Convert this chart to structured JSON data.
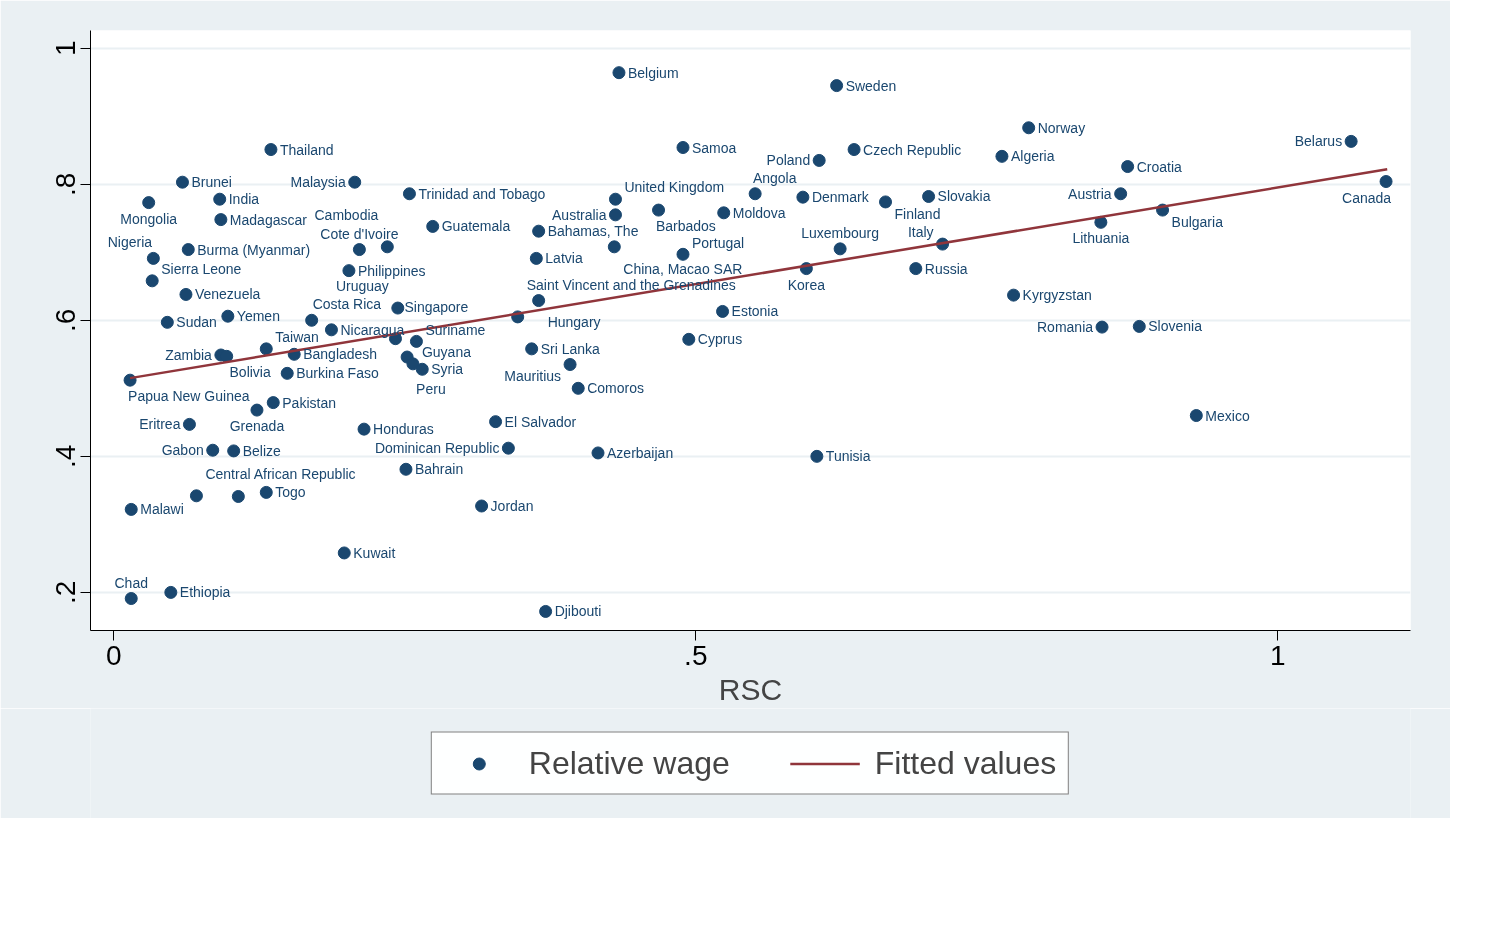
{
  "chart_data": {
    "type": "scatter",
    "xlabel": "RSC",
    "xlim": [
      -0.02,
      1.114
    ],
    "ylim": [
      0.144,
      1.026
    ],
    "xticks": [
      {
        "value": 0,
        "label": "0"
      },
      {
        "value": 0.5,
        "label": ".5"
      },
      {
        "value": 1,
        "label": "1"
      }
    ],
    "yticks": [
      {
        "value": 0.2,
        "label": ".2"
      },
      {
        "value": 0.4,
        "label": ".4"
      },
      {
        "value": 0.6,
        "label": ".6"
      },
      {
        "value": 0.8,
        "label": ".8"
      },
      {
        "value": 1,
        "label": "1"
      }
    ],
    "grid": "y",
    "legend": "bottom",
    "series": [
      {
        "name": "Relative wage",
        "marker": "circle",
        "color": "#1a476f",
        "x": [
          0.434,
          0.621,
          0.786,
          1.063,
          0.135,
          0.489,
          0.636,
          0.606,
          0.763,
          0.871,
          1.093,
          0.059,
          0.207,
          0.03,
          0.091,
          0.254,
          0.431,
          0.551,
          0.592,
          0.663,
          0.7,
          0.865,
          0.468,
          0.431,
          0.524,
          0.901,
          0.092,
          0.848,
          0.274,
          0.365,
          0.064,
          0.211,
          0.235,
          0.43,
          0.489,
          0.624,
          0.712,
          0.034,
          0.363,
          0.595,
          0.689,
          0.202,
          0.033,
          0.062,
          0.773,
          0.365,
          0.244,
          0.523,
          0.098,
          0.347,
          0.046,
          0.17,
          0.187,
          0.849,
          0.881,
          0.494,
          0.242,
          0.26,
          0.092,
          0.097,
          0.131,
          0.155,
          0.359,
          0.252,
          0.257,
          0.265,
          0.392,
          0.149,
          0.014,
          0.399,
          0.137,
          0.123,
          0.93,
          0.328,
          0.065,
          0.215,
          0.339,
          0.416,
          0.604,
          0.085,
          0.103,
          0.251,
          0.071,
          0.107,
          0.131,
          0.316,
          0.015,
          0.198,
          0.049,
          0.015,
          0.371
        ],
        "values": [
          0.964,
          0.945,
          0.883,
          0.863,
          0.851,
          0.854,
          0.851,
          0.835,
          0.841,
          0.826,
          0.804,
          0.803,
          0.803,
          0.773,
          0.778,
          0.786,
          0.778,
          0.786,
          0.781,
          0.774,
          0.782,
          0.786,
          0.762,
          0.755,
          0.758,
          0.762,
          0.748,
          0.744,
          0.738,
          0.731,
          0.704,
          0.704,
          0.708,
          0.708,
          0.697,
          0.705,
          0.712,
          0.691,
          0.691,
          0.676,
          0.676,
          0.673,
          0.658,
          0.638,
          0.637,
          0.629,
          0.618,
          0.613,
          0.606,
          0.605,
          0.597,
          0.6,
          0.586,
          0.59,
          0.591,
          0.572,
          0.573,
          0.569,
          0.549,
          0.547,
          0.558,
          0.55,
          0.558,
          0.546,
          0.536,
          0.528,
          0.535,
          0.522,
          0.512,
          0.5,
          0.479,
          0.468,
          0.46,
          0.451,
          0.447,
          0.44,
          0.412,
          0.405,
          0.4,
          0.409,
          0.408,
          0.381,
          0.342,
          0.341,
          0.347,
          0.327,
          0.322,
          0.258,
          0.2,
          0.191,
          0.172
        ]
      },
      {
        "name": "Fitted values",
        "type": "line",
        "color": "#90353b",
        "line_style": "solid",
        "x": [
          0.014,
          1.094
        ],
        "values": [
          0.515,
          0.822
        ]
      }
    ],
    "annotations": [
      {
        "text": "Belgium",
        "x": 0.434,
        "y": 0.964
      },
      {
        "text": "Sweden",
        "x": 0.621,
        "y": 0.945
      },
      {
        "text": "Norway",
        "x": 0.786,
        "y": 0.883
      },
      {
        "text": "Belarus",
        "x": 1.063,
        "y": 0.863
      },
      {
        "text": "Thailand",
        "x": 0.135,
        "y": 0.851
      },
      {
        "text": "Samoa",
        "x": 0.489,
        "y": 0.854
      },
      {
        "text": "Czech Republic",
        "x": 0.636,
        "y": 0.851
      },
      {
        "text": "Poland",
        "x": 0.606,
        "y": 0.835
      },
      {
        "text": "Algeria",
        "x": 0.763,
        "y": 0.841
      },
      {
        "text": "Croatia",
        "x": 0.871,
        "y": 0.826
      },
      {
        "text": "Canada",
        "x": 1.093,
        "y": 0.804
      },
      {
        "text": "Brunei",
        "x": 0.059,
        "y": 0.803
      },
      {
        "text": "Malaysia",
        "x": 0.207,
        "y": 0.803
      },
      {
        "text": "Mongolia",
        "x": 0.03,
        "y": 0.773
      },
      {
        "text": "India",
        "x": 0.091,
        "y": 0.778
      },
      {
        "text": "Trinidad and Tobago",
        "x": 0.254,
        "y": 0.786
      },
      {
        "text": "United Kingdom",
        "x": 0.431,
        "y": 0.778
      },
      {
        "text": "Angola",
        "x": 0.551,
        "y": 0.786
      },
      {
        "text": "Denmark",
        "x": 0.592,
        "y": 0.781
      },
      {
        "text": "Finland",
        "x": 0.663,
        "y": 0.774
      },
      {
        "text": "Slovakia",
        "x": 0.7,
        "y": 0.782
      },
      {
        "text": "Austria",
        "x": 0.865,
        "y": 0.786
      },
      {
        "text": "Barbados",
        "x": 0.468,
        "y": 0.762
      },
      {
        "text": "Australia",
        "x": 0.431,
        "y": 0.755
      },
      {
        "text": "Moldova",
        "x": 0.524,
        "y": 0.758
      },
      {
        "text": "Bulgaria",
        "x": 0.901,
        "y": 0.762
      },
      {
        "text": "Madagascar",
        "x": 0.092,
        "y": 0.748
      },
      {
        "text": "Lithuania",
        "x": 0.848,
        "y": 0.744
      },
      {
        "text": "Guatemala",
        "x": 0.274,
        "y": 0.738
      },
      {
        "text": "Bahamas, The",
        "x": 0.365,
        "y": 0.731
      },
      {
        "text": "Burma (Myanmar)",
        "x": 0.064,
        "y": 0.704
      },
      {
        "text": "Cote d'Ivoire",
        "x": 0.211,
        "y": 0.704
      },
      {
        "text": "Cambodia",
        "x": 0.235,
        "y": 0.708
      },
      {
        "text": "China, Macao SAR",
        "x": 0.43,
        "y": 0.708
      },
      {
        "text": "Portugal",
        "x": 0.489,
        "y": 0.697
      },
      {
        "text": "Luxembourg",
        "x": 0.624,
        "y": 0.705
      },
      {
        "text": "Italy",
        "x": 0.712,
        "y": 0.712
      },
      {
        "text": "Nigeria",
        "x": 0.034,
        "y": 0.691
      },
      {
        "text": "Latvia",
        "x": 0.363,
        "y": 0.691
      },
      {
        "text": "Korea",
        "x": 0.595,
        "y": 0.676
      },
      {
        "text": "Russia",
        "x": 0.689,
        "y": 0.676
      },
      {
        "text": "Philippines",
        "x": 0.202,
        "y": 0.673
      },
      {
        "text": "Sierra Leone",
        "x": 0.033,
        "y": 0.658
      },
      {
        "text": "Venezuela",
        "x": 0.062,
        "y": 0.638
      },
      {
        "text": "Kyrgyzstan",
        "x": 0.773,
        "y": 0.637
      },
      {
        "text": "Hungary",
        "x": 0.365,
        "y": 0.629
      },
      {
        "text": "Uruguay",
        "x": 0.244,
        "y": 0.618
      },
      {
        "text": "Estonia",
        "x": 0.523,
        "y": 0.613
      },
      {
        "text": "Yemen",
        "x": 0.098,
        "y": 0.606
      },
      {
        "text": "Saint Vincent and the Grenadines",
        "x": 0.347,
        "y": 0.605
      },
      {
        "text": "Sudan",
        "x": 0.046,
        "y": 0.597
      },
      {
        "text": "Costa Rica",
        "x": 0.17,
        "y": 0.6
      },
      {
        "text": "Nicaragua",
        "x": 0.187,
        "y": 0.586
      },
      {
        "text": "Romania",
        "x": 0.849,
        "y": 0.59
      },
      {
        "text": "Slovenia",
        "x": 0.881,
        "y": 0.591
      },
      {
        "text": "Cyprus",
        "x": 0.494,
        "y": 0.572
      },
      {
        "text": "Singapore",
        "x": 0.242,
        "y": 0.573
      },
      {
        "text": "Suriname",
        "x": 0.26,
        "y": 0.569
      },
      {
        "text": "Zambia",
        "x": 0.092,
        "y": 0.549
      },
      {
        "text": "Bolivia",
        "x": 0.097,
        "y": 0.547
      },
      {
        "text": "Taiwan",
        "x": 0.131,
        "y": 0.558
      },
      {
        "text": "Bangladesh",
        "x": 0.155,
        "y": 0.55
      },
      {
        "text": "Sri Lanka",
        "x": 0.359,
        "y": 0.558
      },
      {
        "text": "Peru",
        "x": 0.252,
        "y": 0.546
      },
      {
        "text": "Guyana",
        "x": 0.257,
        "y": 0.536
      },
      {
        "text": "Syria",
        "x": 0.265,
        "y": 0.528
      },
      {
        "text": "Mauritius",
        "x": 0.392,
        "y": 0.535
      },
      {
        "text": "Burkina Faso",
        "x": 0.149,
        "y": 0.522
      },
      {
        "text": "Papua New Guinea",
        "x": 0.014,
        "y": 0.512
      },
      {
        "text": "Comoros",
        "x": 0.399,
        "y": 0.5
      },
      {
        "text": "Pakistan",
        "x": 0.137,
        "y": 0.479
      },
      {
        "text": "Grenada",
        "x": 0.123,
        "y": 0.468
      },
      {
        "text": "Mexico",
        "x": 0.93,
        "y": 0.46
      },
      {
        "text": "El Salvador",
        "x": 0.328,
        "y": 0.451
      },
      {
        "text": "Eritrea",
        "x": 0.065,
        "y": 0.447
      },
      {
        "text": "Honduras",
        "x": 0.215,
        "y": 0.44
      },
      {
        "text": "Dominican Republic",
        "x": 0.339,
        "y": 0.412
      },
      {
        "text": "Azerbaijan",
        "x": 0.416,
        "y": 0.405
      },
      {
        "text": "Tunisia",
        "x": 0.604,
        "y": 0.4
      },
      {
        "text": "Gabon",
        "x": 0.085,
        "y": 0.409
      },
      {
        "text": "Belize",
        "x": 0.103,
        "y": 0.408
      },
      {
        "text": "Bahrain",
        "x": 0.251,
        "y": 0.381
      },
      {
        "text": "Central African Republic",
        "x": 0.071,
        "y": 0.342
      },
      {
        "text": "Togo",
        "x": 0.131,
        "y": 0.347
      },
      {
        "text": "Jordan",
        "x": 0.316,
        "y": 0.327
      },
      {
        "text": "Malawi",
        "x": 0.015,
        "y": 0.322
      },
      {
        "text": "Kuwait",
        "x": 0.198,
        "y": 0.258
      },
      {
        "text": "Ethiopia",
        "x": 0.049,
        "y": 0.2
      },
      {
        "text": "Chad",
        "x": 0.015,
        "y": 0.191
      },
      {
        "text": "Djibouti",
        "x": 0.371,
        "y": 0.172
      }
    ]
  }
}
